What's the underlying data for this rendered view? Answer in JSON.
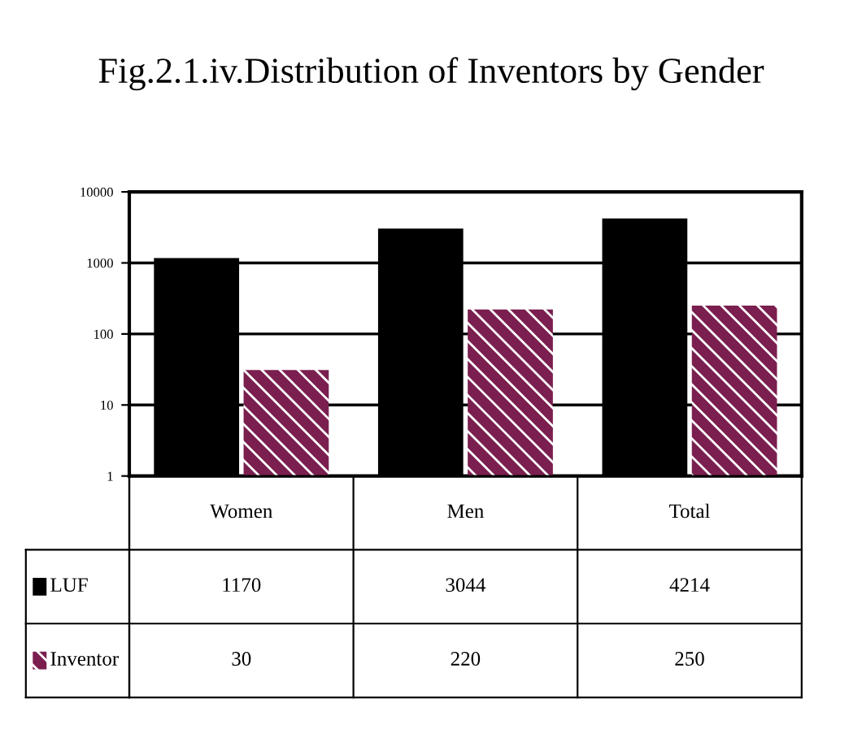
{
  "chart_data": {
    "type": "bar",
    "title": "Fig.2.1.iv.Distribution of Inventors by Gender",
    "categories": [
      "Women",
      "Men",
      "Total"
    ],
    "series": [
      {
        "name": "LUF",
        "color": "#000000",
        "values": [
          1170,
          3044,
          4214
        ]
      },
      {
        "name": "Inventor",
        "color": "#7a1f4f",
        "values": [
          30,
          220,
          250
        ]
      }
    ],
    "log": true,
    "ylim": [
      1,
      10000
    ],
    "yticks": [
      1,
      10,
      100,
      1000,
      10000
    ],
    "grid": "y",
    "data_labels": true,
    "legend": "bottom left"
  }
}
